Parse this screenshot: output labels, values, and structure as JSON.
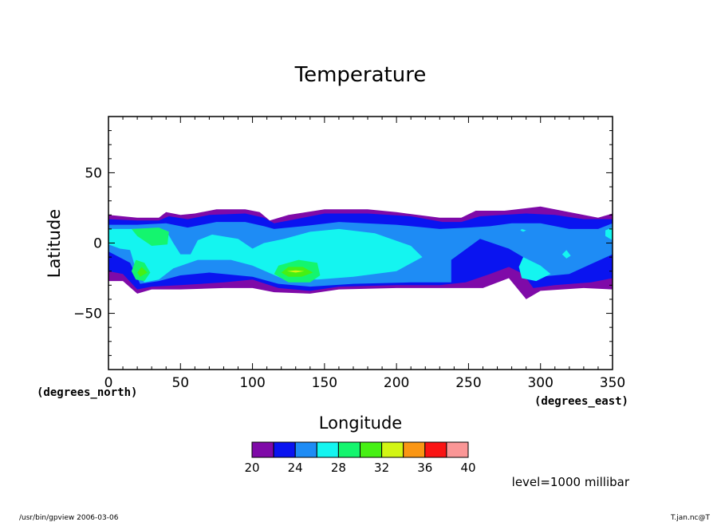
{
  "chart_data": {
    "type": "heatmap",
    "title": "Temperature",
    "xlabel": "Longitude",
    "ylabel": "Latitude",
    "x_units": "(degrees_east)",
    "y_units": "(degrees_north)",
    "xlim": [
      0,
      350
    ],
    "ylim": [
      -90,
      90
    ],
    "x_ticks": [
      0,
      50,
      100,
      150,
      200,
      250,
      300,
      350
    ],
    "x_tick_labels": [
      "0",
      "50",
      "100",
      "150",
      "200",
      "250",
      "300",
      "350"
    ],
    "y_ticks": [
      -50,
      0,
      50
    ],
    "y_tick_labels": [
      "−50",
      "0",
      "50"
    ],
    "contour_levels": [
      20,
      22,
      24,
      26,
      28,
      30,
      32,
      34,
      36,
      38,
      40
    ],
    "colorbar_ticks": [
      "20",
      "24",
      "28",
      "32",
      "36",
      "40"
    ],
    "colors": [
      "#7f0aa8",
      "#0a14f0",
      "#1e8cf5",
      "#14f5f0",
      "#14f56e",
      "#46f014",
      "#d2f514",
      "#fa9614",
      "#fa1414",
      "#fa9696"
    ],
    "level_note": "level=1000 millibar",
    "regions": [
      {
        "level": 20,
        "outline": [
          [
            0,
            20
          ],
          [
            20,
            18
          ],
          [
            35,
            18
          ],
          [
            40,
            22
          ],
          [
            50,
            20
          ],
          [
            60,
            21
          ],
          [
            75,
            24
          ],
          [
            95,
            24
          ],
          [
            105,
            22
          ],
          [
            112,
            16
          ],
          [
            125,
            20
          ],
          [
            150,
            24
          ],
          [
            180,
            24
          ],
          [
            200,
            22
          ],
          [
            230,
            18
          ],
          [
            245,
            18
          ],
          [
            255,
            23
          ],
          [
            275,
            23
          ],
          [
            300,
            26
          ],
          [
            320,
            22
          ],
          [
            340,
            18
          ],
          [
            350,
            21
          ],
          [
            350,
            -33
          ],
          [
            330,
            -32
          ],
          [
            300,
            -34
          ],
          [
            290,
            -40
          ],
          [
            278,
            -25
          ],
          [
            260,
            -32
          ],
          [
            230,
            -32
          ],
          [
            200,
            -32
          ],
          [
            160,
            -33
          ],
          [
            140,
            -36
          ],
          [
            115,
            -35
          ],
          [
            100,
            -32
          ],
          [
            80,
            -32
          ],
          [
            50,
            -33
          ],
          [
            30,
            -33
          ],
          [
            20,
            -36
          ],
          [
            10,
            -27
          ],
          [
            0,
            -27
          ]
        ]
      },
      {
        "level": 22,
        "outline": [
          [
            0,
            17
          ],
          [
            20,
            16
          ],
          [
            35,
            16
          ],
          [
            42,
            19
          ],
          [
            55,
            17
          ],
          [
            70,
            20
          ],
          [
            95,
            21
          ],
          [
            108,
            18
          ],
          [
            115,
            14
          ],
          [
            130,
            17
          ],
          [
            150,
            21
          ],
          [
            180,
            21
          ],
          [
            210,
            19
          ],
          [
            232,
            15
          ],
          [
            245,
            15
          ],
          [
            258,
            19
          ],
          [
            290,
            21
          ],
          [
            310,
            20
          ],
          [
            330,
            17
          ],
          [
            350,
            17
          ],
          [
            350,
            -25
          ],
          [
            335,
            -28
          ],
          [
            310,
            -30
          ],
          [
            295,
            -32
          ],
          [
            288,
            -22
          ],
          [
            278,
            -17
          ],
          [
            265,
            -22
          ],
          [
            248,
            -28
          ],
          [
            230,
            -30
          ],
          [
            200,
            -30
          ],
          [
            160,
            -31
          ],
          [
            140,
            -34
          ],
          [
            118,
            -32
          ],
          [
            100,
            -26
          ],
          [
            80,
            -28
          ],
          [
            50,
            -30
          ],
          [
            30,
            -31
          ],
          [
            20,
            -33
          ],
          [
            10,
            -22
          ],
          [
            0,
            -20
          ]
        ]
      },
      {
        "level": 24,
        "outline": [
          [
            0,
            13
          ],
          [
            20,
            13
          ],
          [
            40,
            14
          ],
          [
            55,
            11
          ],
          [
            75,
            15
          ],
          [
            95,
            15
          ],
          [
            108,
            12
          ],
          [
            115,
            10
          ],
          [
            135,
            12
          ],
          [
            160,
            15
          ],
          [
            200,
            13
          ],
          [
            230,
            10
          ],
          [
            250,
            11
          ],
          [
            265,
            12
          ],
          [
            280,
            14
          ],
          [
            300,
            14
          ],
          [
            320,
            10
          ],
          [
            340,
            10
          ],
          [
            350,
            14
          ],
          [
            350,
            -8
          ],
          [
            335,
            -15
          ],
          [
            320,
            -22
          ],
          [
            300,
            -24
          ],
          [
            288,
            -10
          ],
          [
            278,
            -4
          ],
          [
            258,
            3
          ],
          [
            238,
            -12
          ],
          [
            238,
            -28
          ],
          [
            210,
            -28
          ],
          [
            170,
            -29
          ],
          [
            140,
            -31
          ],
          [
            118,
            -29
          ],
          [
            100,
            -24
          ],
          [
            70,
            -21
          ],
          [
            50,
            -23
          ],
          [
            35,
            -27
          ],
          [
            22,
            -29
          ],
          [
            15,
            -14
          ],
          [
            0,
            -6
          ]
        ]
      },
      {
        "level": 26,
        "outline": [
          [
            0,
            10
          ],
          [
            20,
            10
          ],
          [
            40,
            9
          ],
          [
            45,
            0
          ],
          [
            50,
            -8
          ],
          [
            57,
            -8
          ],
          [
            62,
            2
          ],
          [
            72,
            6
          ],
          [
            90,
            3
          ],
          [
            100,
            -4
          ],
          [
            108,
            0
          ],
          [
            122,
            3
          ],
          [
            140,
            8
          ],
          [
            160,
            10
          ],
          [
            185,
            7
          ],
          [
            210,
            -2
          ],
          [
            218,
            -10
          ],
          [
            200,
            -20
          ],
          [
            170,
            -24
          ],
          [
            145,
            -26
          ],
          [
            120,
            -25
          ],
          [
            100,
            -16
          ],
          [
            85,
            -12
          ],
          [
            62,
            -12
          ],
          [
            45,
            -18
          ],
          [
            35,
            -26
          ],
          [
            25,
            -28
          ],
          [
            20,
            -22
          ],
          [
            15,
            -5
          ],
          [
            8,
            -4
          ],
          [
            0,
            -1
          ]
        ]
      },
      {
        "level": 26,
        "outline": [
          [
            288,
            -10
          ],
          [
            300,
            -16
          ],
          [
            307,
            -22
          ],
          [
            297,
            -27
          ],
          [
            287,
            -25
          ],
          [
            285,
            -17
          ]
        ]
      },
      {
        "level": 26,
        "outline": [
          [
            318,
            -5
          ],
          [
            321,
            -9
          ],
          [
            318,
            -11
          ],
          [
            315,
            -8
          ]
        ]
      },
      {
        "level": 26,
        "outline": [
          [
            287,
            10
          ],
          [
            290,
            9
          ],
          [
            288,
            8
          ],
          [
            286,
            9
          ]
        ]
      },
      {
        "level": 26,
        "outline": [
          [
            345,
            9
          ],
          [
            350,
            11
          ],
          [
            350,
            2
          ],
          [
            345,
            5
          ]
        ]
      },
      {
        "level": 28,
        "outline": [
          [
            16,
            10
          ],
          [
            35,
            11
          ],
          [
            42,
            8
          ],
          [
            41,
            -1
          ],
          [
            30,
            -2
          ],
          [
            20,
            5
          ]
        ]
      },
      {
        "level": 28,
        "outline": [
          [
            19,
            -12
          ],
          [
            25,
            -14
          ],
          [
            29,
            -21
          ],
          [
            25,
            -27
          ],
          [
            19,
            -26
          ],
          [
            16,
            -20
          ]
        ]
      },
      {
        "level": 28,
        "outline": [
          [
            118,
            -16
          ],
          [
            132,
            -12
          ],
          [
            145,
            -14
          ],
          [
            147,
            -23
          ],
          [
            140,
            -28
          ],
          [
            125,
            -28
          ],
          [
            115,
            -22
          ]
        ]
      },
      {
        "level": 30,
        "outline": [
          [
            23,
            -17
          ],
          [
            27,
            -21
          ],
          [
            22,
            -24
          ],
          [
            20,
            -21
          ]
        ]
      },
      {
        "level": 30,
        "outline": [
          [
            125,
            -17
          ],
          [
            135,
            -17
          ],
          [
            142,
            -21
          ],
          [
            134,
            -24
          ],
          [
            125,
            -24
          ],
          [
            120,
            -21
          ]
        ]
      },
      {
        "level": 32,
        "outline": [
          [
            130,
            -19.5
          ],
          [
            136,
            -20
          ],
          [
            130,
            -21
          ],
          [
            124,
            -20
          ]
        ]
      }
    ]
  },
  "footer": {
    "left": "/usr/bin/gpview  2006-03-06",
    "right": "T.jan.nc@T"
  }
}
